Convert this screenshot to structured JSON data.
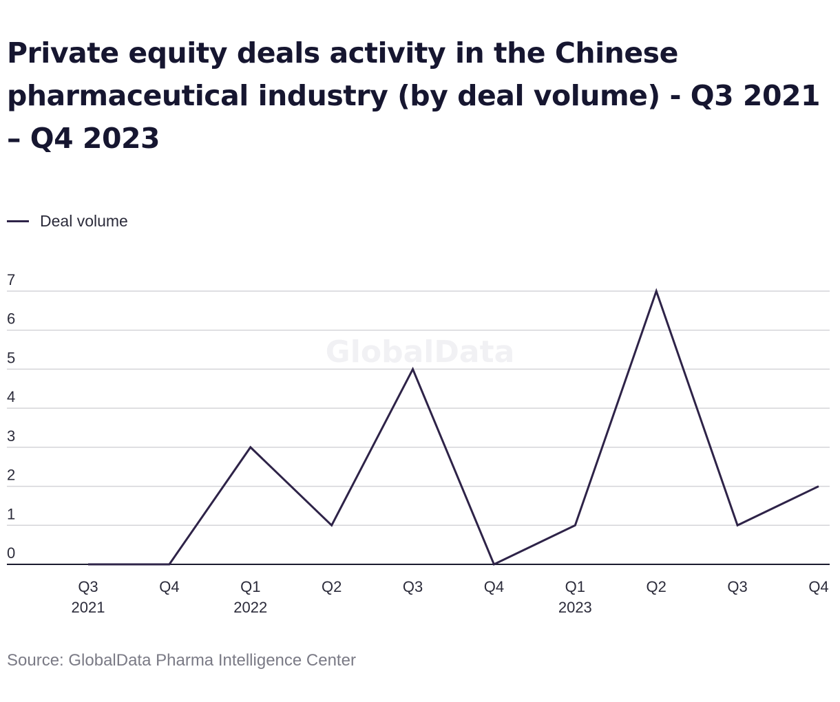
{
  "title": "Private equity deals activity in the Chinese pharmaceutical industry (by deal volume) - Q3 2021 – Q4 2023",
  "legend": {
    "label": "Deal volume",
    "color": "#2e2348"
  },
  "watermark": "GlobalData",
  "source": "Source: GlobalData Pharma Intelligence Center",
  "chart_data": {
    "type": "line",
    "title": "Private equity deals activity in the Chinese pharmaceutical industry (by deal volume) - Q3 2021 – Q4 2023",
    "categories": [
      "Q3 2021",
      "Q4 2021",
      "Q1 2022",
      "Q2 2022",
      "Q3 2022",
      "Q4 2022",
      "Q1 2023",
      "Q2 2023",
      "Q3 2023",
      "Q4 2023"
    ],
    "x_tick_labels": [
      {
        "quarter": "Q3",
        "year": "2021"
      },
      {
        "quarter": "Q4",
        "year": ""
      },
      {
        "quarter": "Q1",
        "year": "2022"
      },
      {
        "quarter": "Q2",
        "year": ""
      },
      {
        "quarter": "Q3",
        "year": ""
      },
      {
        "quarter": "Q4",
        "year": ""
      },
      {
        "quarter": "Q1",
        "year": "2023"
      },
      {
        "quarter": "Q2",
        "year": ""
      },
      {
        "quarter": "Q3",
        "year": ""
      },
      {
        "quarter": "Q4",
        "year": ""
      }
    ],
    "series": [
      {
        "name": "Deal volume",
        "values": [
          0,
          0,
          3,
          1,
          5,
          0,
          1,
          7,
          1,
          2
        ],
        "color": "#2e2348"
      }
    ],
    "y_ticks": [
      "0",
      "1",
      "2",
      "3",
      "4",
      "5",
      "6",
      "7"
    ],
    "ylim": [
      0,
      7
    ],
    "grid": true,
    "legend_position": "top-left",
    "xlabel": "",
    "ylabel": ""
  }
}
